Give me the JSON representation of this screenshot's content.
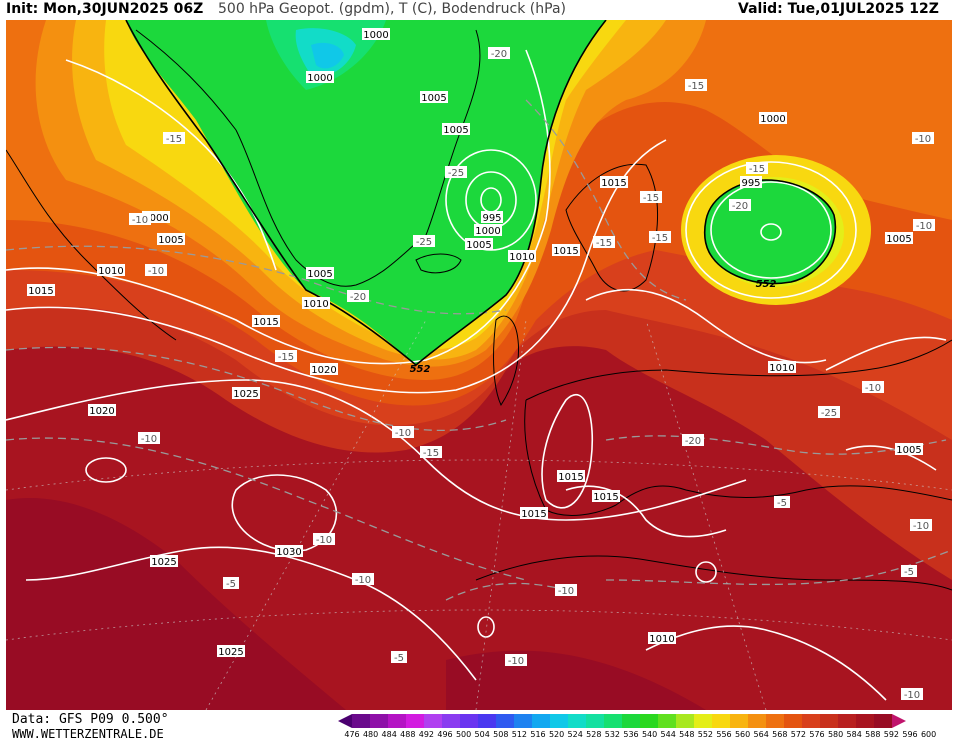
{
  "header": {
    "init": "Init: Mon,30JUN2025 06Z",
    "title": "500 hPa Geopot. (gpdm), T (C), Bodendruck (hPa)",
    "valid": "Valid: Tue,01JUL2025 12Z"
  },
  "footer": {
    "data_source": "Data: GFS P09 0.500°",
    "website": "WWW.WETTERZENTRALE.DE"
  },
  "legend": {
    "values": [
      "476",
      "480",
      "484",
      "488",
      "492",
      "496",
      "500",
      "504",
      "508",
      "512",
      "516",
      "520",
      "524",
      "528",
      "532",
      "536",
      "540",
      "544",
      "548",
      "552",
      "556",
      "560",
      "564",
      "568",
      "572",
      "576",
      "580",
      "584",
      "588",
      "592",
      "596",
      "600"
    ],
    "colors": [
      "#4b0070",
      "#6a0a8c",
      "#8e10a8",
      "#b414c4",
      "#d21ce0",
      "#b040f0",
      "#8a3cf0",
      "#6a34f0",
      "#4a38f0",
      "#2f5af0",
      "#1e82f0",
      "#12a8f0",
      "#10c8e8",
      "#12dcc8",
      "#14e0a0",
      "#16e070",
      "#1cd83c",
      "#2ad820",
      "#60e020",
      "#a8e820",
      "#e4ee18",
      "#f8d810",
      "#f8b410",
      "#f49010",
      "#ee7010",
      "#e45410",
      "#d8401c",
      "#c8301c",
      "#b82020",
      "#a81420",
      "#980c24",
      "#c0146c"
    ]
  },
  "map_labels": {
    "pressure": [
      {
        "text": "1000"
      },
      {
        "text": "1000"
      },
      {
        "text": "1005"
      },
      {
        "text": "1005"
      },
      {
        "text": "995"
      },
      {
        "text": "1000"
      },
      {
        "text": "1005"
      },
      {
        "text": "1010"
      },
      {
        "text": "1005"
      },
      {
        "text": "1010"
      },
      {
        "text": "1015"
      },
      {
        "text": "1015"
      },
      {
        "text": "1020"
      },
      {
        "text": "1025"
      },
      {
        "text": "1020"
      },
      {
        "text": "1000"
      },
      {
        "text": "1005"
      },
      {
        "text": "1010"
      },
      {
        "text": "1015"
      },
      {
        "text": "1015"
      },
      {
        "text": "1000"
      },
      {
        "text": "995"
      },
      {
        "text": "1005"
      },
      {
        "text": "1010"
      },
      {
        "text": "1005"
      },
      {
        "text": "1015"
      },
      {
        "text": "1015"
      },
      {
        "text": "1015"
      },
      {
        "text": "1030"
      },
      {
        "text": "1025"
      },
      {
        "text": "1025"
      },
      {
        "text": "1010"
      }
    ],
    "temperature": [
      {
        "text": "-20"
      },
      {
        "text": "-15"
      },
      {
        "text": "-15"
      },
      {
        "text": "-25"
      },
      {
        "text": "-25"
      },
      {
        "text": "-20"
      },
      {
        "text": "-15"
      },
      {
        "text": "-10"
      },
      {
        "text": "-15"
      },
      {
        "text": "-15"
      },
      {
        "text": "-15"
      },
      {
        "text": "-20"
      },
      {
        "text": "-15"
      },
      {
        "text": "-10"
      },
      {
        "text": "-10"
      },
      {
        "text": "-10"
      },
      {
        "text": "-10"
      },
      {
        "text": "-10"
      },
      {
        "text": "-25"
      },
      {
        "text": "-20"
      },
      {
        "text": "-10"
      },
      {
        "text": "-15"
      },
      {
        "text": "-10"
      },
      {
        "text": "-10"
      },
      {
        "text": "-5"
      },
      {
        "text": "-5"
      },
      {
        "text": "-10"
      },
      {
        "text": "-5"
      },
      {
        "text": "-10"
      },
      {
        "text": "-5"
      },
      {
        "text": "-10"
      },
      {
        "text": "-10"
      }
    ],
    "geopotential": [
      {
        "text": "552"
      },
      {
        "text": "552"
      }
    ]
  }
}
